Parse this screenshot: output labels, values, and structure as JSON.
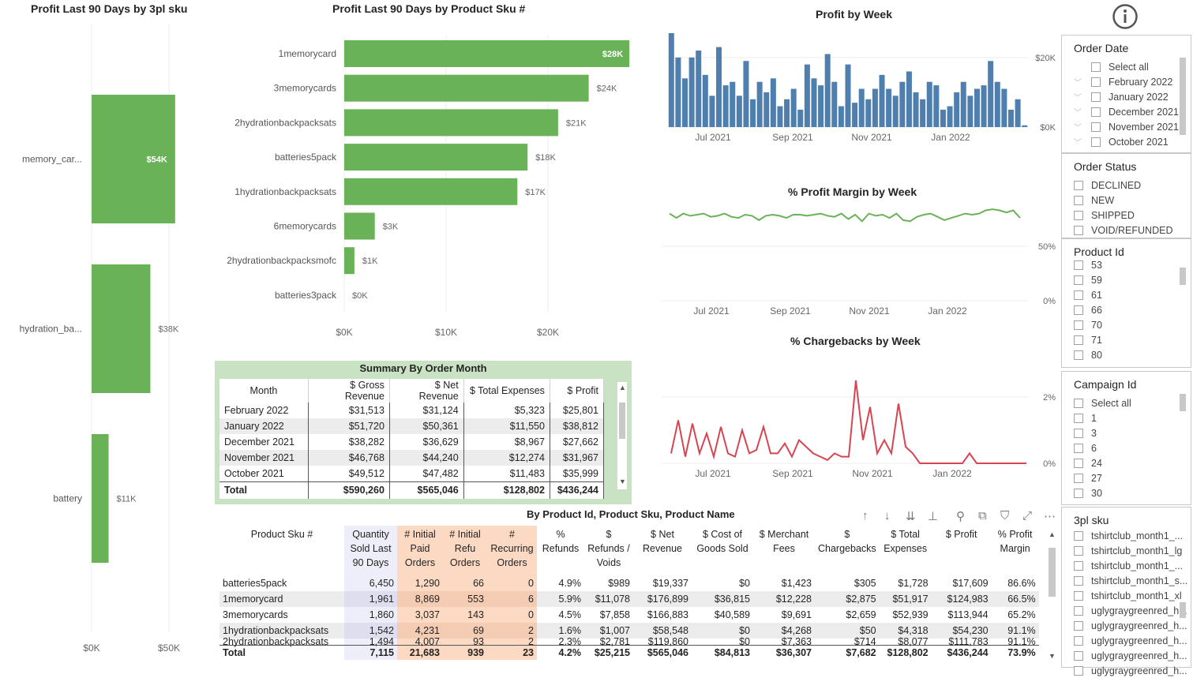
{
  "info_icon": "info-icon",
  "sku3pl_chart": {
    "title": "Profit Last 90 Days by 3pl sku",
    "chart_data": {
      "type": "bar",
      "orientation": "horizontal",
      "categories": [
        "memory_car...",
        "hydration_ba...",
        "battery"
      ],
      "values": [
        54,
        38,
        11
      ],
      "data_labels": [
        "$54K",
        "$38K",
        "$11K"
      ],
      "xlim": [
        0,
        55
      ],
      "x_ticks": [
        0,
        50
      ],
      "x_tick_labels": [
        "$0K",
        "$50K"
      ],
      "color": "#6ab257",
      "grid": true
    }
  },
  "sku_chart": {
    "title": "Profit Last 90 Days by Product Sku #",
    "chart_data": {
      "type": "bar",
      "orientation": "horizontal",
      "categories": [
        "1memorycard",
        "3memorycards",
        "2hydrationbackpacksats",
        "batteries5pack",
        "1hydrationbackpacksats",
        "6memorycards",
        "2hydrationbackpacksmofc",
        "batteries3pack"
      ],
      "values": [
        28,
        24,
        21,
        18,
        17,
        3,
        1,
        0
      ],
      "data_labels": [
        "$28K",
        "$24K",
        "$21K",
        "$18K",
        "$17K",
        "$3K",
        "$1K",
        "$0K"
      ],
      "xlim": [
        0,
        28
      ],
      "x_ticks": [
        0,
        10,
        20
      ],
      "x_tick_labels": [
        "$0K",
        "$10K",
        "$20K"
      ],
      "color": "#6ab257",
      "grid": true
    }
  },
  "profit_week": {
    "title": "Profit by Week",
    "chart_data": {
      "type": "bar",
      "x_tick_labels": [
        "Jul 2021",
        "Sep 2021",
        "Nov 2021",
        "Jan 2022"
      ],
      "y_tick_labels": [
        "$0K",
        "$20K"
      ],
      "y_ticks": [
        0,
        20
      ],
      "ylim": [
        0,
        27
      ],
      "values": [
        27,
        20,
        14,
        20,
        22,
        15,
        9,
        23,
        12,
        13,
        9,
        19,
        8,
        13,
        10,
        14,
        6,
        8,
        11,
        5,
        18,
        14,
        12,
        21,
        13,
        6,
        18,
        7,
        11,
        8,
        11,
        15,
        11,
        9,
        13,
        16,
        10,
        8,
        13,
        12,
        5,
        6,
        10,
        13,
        9,
        11,
        12,
        19,
        13,
        11,
        5,
        8,
        0.5
      ],
      "color": "#4f7fae"
    }
  },
  "margin_week": {
    "title": "% Profit Margin by Week",
    "chart_data": {
      "type": "line",
      "x_tick_labels": [
        "Jul 2021",
        "Sep 2021",
        "Nov 2021",
        "Jan 2022"
      ],
      "y_tick_labels": [
        "0%",
        "50%"
      ],
      "y_ticks": [
        0,
        50
      ],
      "ylim": [
        0,
        100
      ],
      "values": [
        80,
        76,
        80,
        78,
        79,
        80,
        77,
        78,
        80,
        77,
        76,
        79,
        78,
        74,
        78,
        79,
        78,
        76,
        79,
        79,
        78,
        79,
        80,
        78,
        77,
        80,
        75,
        79,
        73,
        80,
        78,
        79,
        76,
        80,
        74,
        73,
        77,
        79,
        80,
        77,
        74,
        76,
        78,
        80,
        79,
        80,
        83,
        84,
        83,
        81,
        83,
        76
      ],
      "color": "#6ab257"
    }
  },
  "chargeback_week": {
    "title": "% Chargebacks by Week",
    "chart_data": {
      "type": "line",
      "x_tick_labels": [
        "Jul 2021",
        "Sep 2021",
        "Nov 2021",
        "Jan 2022"
      ],
      "y_tick_labels": [
        "0%",
        "2%"
      ],
      "y_ticks": [
        0,
        2
      ],
      "ylim": [
        0,
        2.5
      ],
      "values": [
        0.3,
        1.3,
        0.2,
        1.2,
        0.3,
        0.9,
        0.2,
        1.1,
        0.3,
        0.2,
        1.0,
        0.3,
        0.4,
        1.1,
        0.3,
        0.3,
        0.6,
        0.2,
        0.7,
        0.5,
        0.3,
        0.2,
        0.1,
        0.3,
        0.2,
        0.2,
        2.5,
        0.7,
        1.7,
        0.3,
        0.7,
        0.3,
        1.8,
        0.5,
        0.3,
        0.0,
        0.0,
        0.0,
        0.0,
        0.0,
        0.0,
        0.0,
        0.3,
        0.0,
        0.0,
        0.0,
        0.0,
        0.0,
        0.0,
        0.0,
        0.0
      ],
      "color": "#d64550"
    }
  },
  "summary": {
    "title": "Summary By Order Month",
    "columns": [
      "Month",
      "$ Gross Revenue",
      "$ Net Revenue",
      "$ Total Expenses",
      "$ Profit"
    ],
    "rows": [
      [
        "February 2022",
        "$31,513",
        "$31,124",
        "$5,323",
        "$25,801"
      ],
      [
        "January 2022",
        "$51,720",
        "$50,361",
        "$11,550",
        "$38,812"
      ],
      [
        "December 2021",
        "$38,282",
        "$36,629",
        "$8,967",
        "$27,662"
      ],
      [
        "November 2021",
        "$46,768",
        "$44,240",
        "$12,274",
        "$31,967"
      ],
      [
        "October 2021",
        "$49,512",
        "$47,482",
        "$11,483",
        "$35,999"
      ]
    ],
    "total": [
      "Total",
      "$590,260",
      "$565,046",
      "$128,802",
      "$436,244"
    ]
  },
  "product_table": {
    "title": "By Product Id, Product Sku, Product Name",
    "columns": [
      "Product Sku #",
      "Quantity Sold Last 90 Days",
      "# Initial Paid Orders",
      "# Initial Refu Orders",
      "# Recurring Orders",
      "% Refunds",
      "$ Refunds / Voids",
      "$ Net Revenue",
      "$ Cost of Goods Sold",
      "$ Merchant Fees",
      "$ Chargebacks",
      "$ Total Expenses",
      "$ Profit",
      "% Profit Margin"
    ],
    "rows": [
      [
        "batteries5pack",
        "6,450",
        "1,290",
        "66",
        "0",
        "4.9%",
        "$989",
        "$19,337",
        "$0",
        "$1,423",
        "$305",
        "$1,728",
        "$17,609",
        "86.6%"
      ],
      [
        "1memorycard",
        "1,961",
        "8,869",
        "553",
        "6",
        "5.9%",
        "$11,078",
        "$176,899",
        "$36,815",
        "$12,228",
        "$2,875",
        "$51,917",
        "$124,983",
        "66.5%"
      ],
      [
        "3memorycards",
        "1,860",
        "3,037",
        "143",
        "0",
        "4.5%",
        "$7,858",
        "$166,883",
        "$40,589",
        "$9,691",
        "$2,659",
        "$52,939",
        "$113,944",
        "65.2%"
      ],
      [
        "1hydrationbackpacksats",
        "1,542",
        "4,231",
        "69",
        "2",
        "1.6%",
        "$1,007",
        "$58,548",
        "$0",
        "$4,268",
        "$50",
        "$4,318",
        "$54,230",
        "91.1%"
      ],
      [
        "2hydrationbackpacksats",
        "1,494",
        "4,007",
        "93",
        "2",
        "2.3%",
        "$2,781",
        "$119,860",
        "$0",
        "$7,363",
        "$714",
        "$8,077",
        "$111,783",
        "91.1%"
      ]
    ],
    "total": [
      "Total",
      "7,115",
      "21,683",
      "939",
      "23",
      "4.2%",
      "$25,215",
      "$565,046",
      "$84,813",
      "$36,307",
      "$7,682",
      "$128,802",
      "$436,244",
      "73.9%"
    ]
  },
  "slicers": {
    "order_date": {
      "title": "Order Date",
      "items": [
        "Select all",
        "February 2022",
        "January 2022",
        "December 2021",
        "November 2021",
        "October 2021"
      ]
    },
    "order_status": {
      "title": "Order Status",
      "items": [
        "DECLINED",
        "NEW",
        "SHIPPED",
        "VOID/REFUNDED"
      ]
    },
    "product_id": {
      "title": "Product Id",
      "items": [
        "53",
        "59",
        "61",
        "66",
        "70",
        "71",
        "80"
      ]
    },
    "campaign_id": {
      "title": "Campaign Id",
      "items": [
        "Select all",
        "1",
        "3",
        "6",
        "24",
        "27",
        "30"
      ]
    },
    "sku3pl": {
      "title": "3pl sku",
      "items": [
        "tshirtclub_month1_...",
        "tshirtclub_month1_lg",
        "tshirtclub_month1_...",
        "tshirtclub_month1_s...",
        "tshirtclub_month1_xl",
        "uglygraygreenred_h...",
        "uglygraygreenred_h...",
        "uglygraygreenred_h...",
        "uglygraygreenred_h...",
        "uglygraygreenred_h..."
      ]
    }
  },
  "toolbar": [
    "arrow-up-icon",
    "arrow-down-icon",
    "expand-all-icon",
    "hierarchy-icon",
    "pin-icon",
    "copy-icon",
    "filter-icon",
    "focus-mode-icon",
    "more-options-icon"
  ]
}
